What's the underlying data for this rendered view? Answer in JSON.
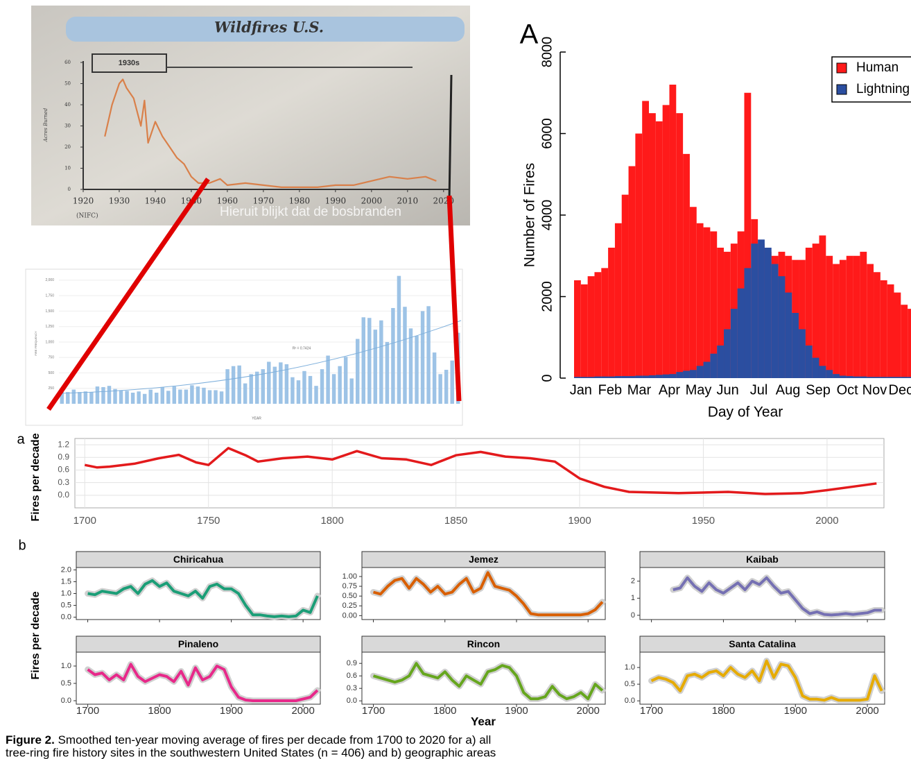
{
  "chart_data": [
    {
      "type": "line",
      "title": "Wildfires U.S.",
      "y_label": "Acres Burned",
      "label_box": "1930s",
      "source": "(NIFC)",
      "subtitle_overlay": "Hieruit blijkt dat de bosbranden",
      "x": [
        1926,
        1928,
        1930,
        1931,
        1932,
        1934,
        1936,
        1937,
        1938,
        1940,
        1942,
        1944,
        1946,
        1948,
        1950,
        1952,
        1955,
        1958,
        1960,
        1965,
        1970,
        1975,
        1980,
        1985,
        1990,
        1995,
        2000,
        2005,
        2010,
        2015,
        2018
      ],
      "values": [
        25,
        40,
        50,
        52,
        48,
        43,
        30,
        42,
        22,
        32,
        25,
        20,
        15,
        12,
        6,
        3,
        3,
        5,
        2,
        3,
        2,
        1,
        1,
        1,
        2,
        2,
        4,
        6,
        5,
        6,
        4
      ],
      "color": "#d9804a",
      "xlim": [
        1920,
        2021
      ],
      "ylim": [
        0,
        60
      ],
      "xticks": [
        1920,
        1930,
        1940,
        1950,
        1960,
        1970,
        1980,
        1990,
        2000,
        2010,
        2020
      ],
      "yticks": [
        0,
        10,
        20,
        30,
        40,
        50,
        60
      ]
    },
    {
      "type": "bar",
      "y_label": "FIRE FREQUENCY",
      "x_label": "YEAR",
      "annotation": "R² = 0.7424",
      "categories": [
        null,
        null,
        null,
        null,
        null,
        null,
        null,
        null,
        null,
        null,
        null,
        null,
        null,
        null,
        null,
        null,
        null,
        null,
        null,
        null,
        null,
        null,
        null,
        null,
        null,
        null,
        null,
        null,
        null,
        null,
        null,
        null,
        null,
        null,
        null,
        null,
        null,
        null,
        null,
        null,
        null,
        null,
        null,
        null,
        null,
        null,
        null,
        null,
        null,
        null,
        null,
        null,
        null,
        null,
        null,
        null,
        null,
        null,
        null,
        null,
        null,
        null,
        null,
        null,
        null,
        null,
        null,
        null
      ],
      "values": [
        190,
        190,
        230,
        190,
        200,
        190,
        280,
        270,
        290,
        240,
        220,
        210,
        180,
        200,
        160,
        230,
        180,
        270,
        210,
        280,
        230,
        230,
        300,
        280,
        260,
        220,
        220,
        200,
        560,
        610,
        620,
        330,
        480,
        520,
        560,
        680,
        600,
        670,
        640,
        430,
        380,
        530,
        450,
        290,
        560,
        780,
        480,
        610,
        760,
        410,
        1050,
        1400,
        1390,
        1200,
        1350,
        1000,
        1550,
        2070,
        1570,
        1220,
        1100,
        1500,
        1580,
        830,
        480,
        550,
        700,
        1150
      ],
      "color": "#9dc3e6",
      "ylim": [
        0,
        2100
      ],
      "grid": true,
      "yticks": [
        250,
        500,
        750,
        {
          "value": 1000,
          "label": "1,000"
        },
        {
          "value": 1250,
          "label": "1,250"
        },
        {
          "value": 1500,
          "label": "1,500"
        },
        {
          "value": 1750,
          "label": "1,750"
        },
        {
          "value": 2000,
          "label": "2,000"
        }
      ]
    },
    {
      "type": "bar",
      "panel_label": "A",
      "y_label": "Number of Fires",
      "x_label": "Day of Year",
      "legend": "top-right",
      "x": [
        0,
        7,
        14,
        21,
        28,
        35,
        42,
        49,
        56,
        63,
        70,
        77,
        84,
        91,
        98,
        105,
        112,
        119,
        126,
        133,
        140,
        147,
        154,
        161,
        168,
        175,
        182,
        189,
        196,
        203,
        210,
        217,
        224,
        231,
        238,
        245,
        252,
        259,
        266,
        273,
        280,
        287,
        294,
        301,
        308,
        315,
        322,
        329,
        336,
        343,
        350,
        357
      ],
      "series": [
        {
          "name": "Human",
          "color": "#ff1a1a",
          "values": [
            2400,
            2300,
            2500,
            2600,
            2700,
            3200,
            3800,
            4500,
            5200,
            6000,
            6800,
            6500,
            6300,
            6700,
            7200,
            6500,
            5500,
            4200,
            3800,
            3700,
            3600,
            3200,
            3100,
            3300,
            3600,
            7000,
            3900,
            3300,
            3100,
            3000,
            3100,
            3000,
            2900,
            2900,
            3200,
            3300,
            3500,
            3000,
            2800,
            2900,
            3000,
            3000,
            3100,
            2800,
            2600,
            2400,
            2300,
            2100,
            1800,
            1700,
            1900,
            2100
          ]
        },
        {
          "name": "Lightning",
          "color": "#2b4ea0",
          "values": [
            30,
            30,
            30,
            40,
            40,
            40,
            50,
            50,
            50,
            60,
            60,
            70,
            80,
            90,
            100,
            150,
            180,
            200,
            300,
            400,
            600,
            800,
            1200,
            1700,
            2200,
            2700,
            3300,
            3400,
            3200,
            2800,
            2500,
            2100,
            1600,
            1200,
            800,
            500,
            300,
            200,
            100,
            60,
            50,
            40,
            40,
            30,
            30,
            30,
            30,
            30,
            30,
            30,
            30,
            30
          ]
        }
      ],
      "xlim": [
        0,
        365
      ],
      "ylim": [
        0,
        8000
      ],
      "yticks": [
        0,
        2000,
        4000,
        6000,
        8000
      ],
      "xticks": [
        {
          "value": 7,
          "label": "Jan"
        },
        {
          "value": 37,
          "label": "Feb"
        },
        {
          "value": 67,
          "label": "Mar"
        },
        {
          "value": 98,
          "label": "Apr"
        },
        {
          "value": 128,
          "label": "May"
        },
        {
          "value": 158,
          "label": "Jun"
        },
        {
          "value": 190,
          "label": "Jul"
        },
        {
          "value": 220,
          "label": "Aug"
        },
        {
          "value": 251,
          "label": "Sep"
        },
        {
          "value": 281,
          "label": "Oct"
        },
        {
          "value": 309,
          "label": "Nov"
        },
        {
          "value": 336,
          "label": "Dec"
        }
      ]
    },
    {
      "type": "line",
      "panel_label": "a",
      "y_label": "Fires per decade",
      "x": [
        1700,
        1705,
        1710,
        1720,
        1730,
        1738,
        1745,
        1750,
        1758,
        1765,
        1770,
        1780,
        1790,
        1800,
        1810,
        1820,
        1830,
        1840,
        1850,
        1860,
        1870,
        1880,
        1890,
        1900,
        1910,
        1920,
        1940,
        1960,
        1975,
        1990,
        2000,
        2010,
        2020
      ],
      "values": [
        0.72,
        0.66,
        0.68,
        0.75,
        0.88,
        0.96,
        0.78,
        0.72,
        1.12,
        0.95,
        0.8,
        0.88,
        0.92,
        0.85,
        1.05,
        0.88,
        0.85,
        0.72,
        0.95,
        1.03,
        0.92,
        0.88,
        0.8,
        0.4,
        0.2,
        0.08,
        0.05,
        0.08,
        0.03,
        0.05,
        0.12,
        0.2,
        0.28
      ],
      "color": "#e31a1c",
      "xlim": [
        1696,
        2023
      ],
      "ylim": [
        -0.3,
        1.35
      ],
      "grid": true,
      "xticks": [
        1700,
        1750,
        1800,
        1850,
        1900,
        1950,
        2000
      ],
      "yticks": [
        {
          "value": 0,
          "label": "0.0"
        },
        0.3,
        0.6,
        0.9,
        1.2
      ]
    },
    {
      "type": "small-multiples",
      "panel_label": "b",
      "y_label": "Fires per decade",
      "x_label": "Year",
      "x": [
        1700,
        1710,
        1720,
        1730,
        1740,
        1750,
        1760,
        1770,
        1780,
        1790,
        1800,
        1810,
        1820,
        1830,
        1840,
        1850,
        1860,
        1870,
        1880,
        1890,
        1900,
        1910,
        1920,
        1930,
        1940,
        1950,
        1960,
        1970,
        1980,
        1990,
        2000,
        2010,
        2020
      ],
      "xlim": [
        1684,
        2024
      ],
      "xticks": [
        1700,
        1800,
        1900,
        2000
      ],
      "panels": [
        {
          "title": "Chiricahua",
          "color": "#1b9e77",
          "ylim": [
            -0.1,
            2.1
          ],
          "yticks": [
            {
              "value": 0,
              "label": "0.0"
            },
            0.5,
            {
              "value": 1,
              "label": "1.0"
            },
            1.5,
            {
              "value": 2,
              "label": "2.0"
            }
          ],
          "values": [
            1.0,
            0.95,
            1.1,
            1.05,
            1.0,
            1.2,
            1.3,
            1.0,
            1.4,
            1.55,
            1.3,
            1.45,
            1.1,
            1.0,
            0.9,
            1.1,
            0.8,
            1.3,
            1.4,
            1.2,
            1.2,
            1.0,
            0.5,
            0.1,
            0.1,
            0.05,
            0.02,
            0.05,
            0.02,
            0.05,
            0.3,
            0.2,
            0.9
          ]
        },
        {
          "title": "Jemez",
          "color": "#d95f02",
          "ylim": [
            -0.1,
            1.23
          ],
          "yticks": [
            {
              "value": 0,
              "label": "0.00"
            },
            0.25,
            {
              "value": 0.5,
              "label": "0.50"
            },
            0.75,
            {
              "value": 1,
              "label": "1.00"
            }
          ],
          "values": [
            0.6,
            0.55,
            0.75,
            0.9,
            0.95,
            0.7,
            0.95,
            0.8,
            0.6,
            0.75,
            0.55,
            0.6,
            0.8,
            0.95,
            0.6,
            0.7,
            1.1,
            0.75,
            0.7,
            0.65,
            0.5,
            0.3,
            0.05,
            0.02,
            0.02,
            0.02,
            0.02,
            0.02,
            0.02,
            0.02,
            0.05,
            0.15,
            0.35
          ]
        },
        {
          "title": "Kaibab",
          "color": "#7570b3",
          "ylim": [
            -0.25,
            2.8
          ],
          "yticks": [
            0,
            1,
            2
          ],
          "values": [
            null,
            null,
            null,
            1.5,
            1.6,
            2.2,
            1.7,
            1.4,
            1.9,
            1.5,
            1.3,
            1.6,
            1.9,
            1.5,
            2.0,
            1.8,
            2.2,
            1.7,
            1.3,
            1.4,
            0.9,
            0.4,
            0.1,
            0.2,
            0.05,
            0.02,
            0.05,
            0.1,
            0.05,
            0.1,
            0.15,
            0.3,
            0.3
          ]
        },
        {
          "title": "Pinaleno",
          "color": "#e7298a",
          "ylim": [
            -0.1,
            1.4
          ],
          "yticks": [
            {
              "value": 0,
              "label": "0.0"
            },
            0.5,
            {
              "value": 1,
              "label": "1.0"
            }
          ],
          "values": [
            0.9,
            0.75,
            0.8,
            0.6,
            0.75,
            0.6,
            1.05,
            0.7,
            0.55,
            0.65,
            0.75,
            0.7,
            0.55,
            0.85,
            0.45,
            0.95,
            0.6,
            0.7,
            1.0,
            0.9,
            0.4,
            0.1,
            0.02,
            0,
            0,
            0,
            0,
            0,
            0,
            0,
            0.05,
            0.1,
            0.3
          ]
        },
        {
          "title": "Rincon",
          "color": "#66a61e",
          "ylim": [
            -0.08,
            1.17
          ],
          "yticks": [
            {
              "value": 0,
              "label": "0.0"
            },
            0.3,
            0.6,
            0.9
          ],
          "values": [
            0.6,
            0.55,
            0.5,
            0.45,
            0.5,
            0.6,
            0.9,
            0.65,
            0.6,
            0.55,
            0.7,
            0.5,
            0.35,
            0.6,
            0.5,
            0.4,
            0.7,
            0.75,
            0.85,
            0.8,
            0.6,
            0.2,
            0.05,
            0.05,
            0.1,
            0.35,
            0.15,
            0.05,
            0.1,
            0.2,
            0.05,
            0.4,
            0.25
          ]
        },
        {
          "title": "Santa Catalina",
          "color": "#e6ab02",
          "ylim": [
            -0.1,
            1.46
          ],
          "yticks": [
            {
              "value": 0,
              "label": "0.0"
            },
            0.5,
            {
              "value": 1,
              "label": "1.0"
            }
          ],
          "values": [
            0.6,
            0.7,
            0.65,
            0.55,
            0.3,
            0.75,
            0.8,
            0.7,
            0.85,
            0.9,
            0.75,
            1.0,
            0.8,
            0.7,
            0.9,
            0.6,
            1.2,
            0.7,
            1.1,
            1.05,
            0.7,
            0.15,
            0.05,
            0.05,
            0.02,
            0.1,
            0.02,
            0.02,
            0.02,
            0.02,
            0.05,
            0.75,
            0.3
          ]
        }
      ]
    }
  ],
  "caption": {
    "label": "Figure 2.",
    "lines": [
      " Smoothed ten-year moving average of fires per decade from 1700 to 2020 for a) all",
      "tree-ring fire history sites in the southwestern United States (n = 406) and b) geographic areas"
    ]
  }
}
